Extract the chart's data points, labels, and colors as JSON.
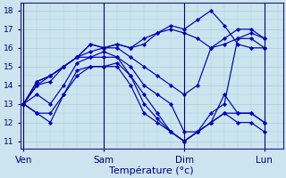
{
  "xlabel": "Température (°c)",
  "background_color": "#cce4ee",
  "grid_color": "#aaccdd",
  "line_color": "#0000aa",
  "marker_color": "#0000cc",
  "ylim_bottom": 10.6,
  "ylim_top": 18.4,
  "yticks": [
    11,
    12,
    13,
    14,
    15,
    16,
    17,
    18
  ],
  "day_positions": [
    0,
    96,
    192,
    288
  ],
  "day_labels": [
    "Ven",
    "Sam",
    "Dim",
    "Lun"
  ],
  "xlim": [
    -4,
    310
  ],
  "x_step": 16,
  "series": [
    [
      13.0,
      14.2,
      14.5,
      15.0,
      15.5,
      16.2,
      16.0,
      16.2,
      16.0,
      16.5,
      16.8,
      17.2,
      17.0,
      17.5,
      18.0,
      17.2,
      16.2,
      16.0,
      16.0
    ],
    [
      13.0,
      14.2,
      14.5,
      15.0,
      15.5,
      16.2,
      16.0,
      16.2,
      16.0,
      16.2,
      16.8,
      17.0,
      16.8,
      16.5,
      16.0,
      16.2,
      16.5,
      16.8,
      16.5
    ],
    [
      13.0,
      14.0,
      14.5,
      15.0,
      15.5,
      15.8,
      16.0,
      16.0,
      15.5,
      15.0,
      14.5,
      14.0,
      13.5,
      14.0,
      16.0,
      16.5,
      17.0,
      17.0,
      16.5
    ],
    [
      13.0,
      14.0,
      14.2,
      15.0,
      15.5,
      15.5,
      15.8,
      15.5,
      15.0,
      14.0,
      13.5,
      13.0,
      11.5,
      11.5,
      12.5,
      13.0,
      16.5,
      16.5,
      16.0
    ],
    [
      13.0,
      13.5,
      13.0,
      14.0,
      15.2,
      15.5,
      15.5,
      15.5,
      14.5,
      13.5,
      12.5,
      11.5,
      11.0,
      11.5,
      12.0,
      13.5,
      12.5,
      12.5,
      12.0
    ],
    [
      13.0,
      12.5,
      12.5,
      13.5,
      14.8,
      15.0,
      15.0,
      15.2,
      14.5,
      13.0,
      12.2,
      11.5,
      11.0,
      11.5,
      12.0,
      12.5,
      12.5,
      12.5,
      12.0
    ],
    [
      13.0,
      12.5,
      12.0,
      13.5,
      14.5,
      15.0,
      15.0,
      15.0,
      14.0,
      12.5,
      12.0,
      11.5,
      11.0,
      11.5,
      12.0,
      12.5,
      12.0,
      12.0,
      11.5
    ]
  ]
}
